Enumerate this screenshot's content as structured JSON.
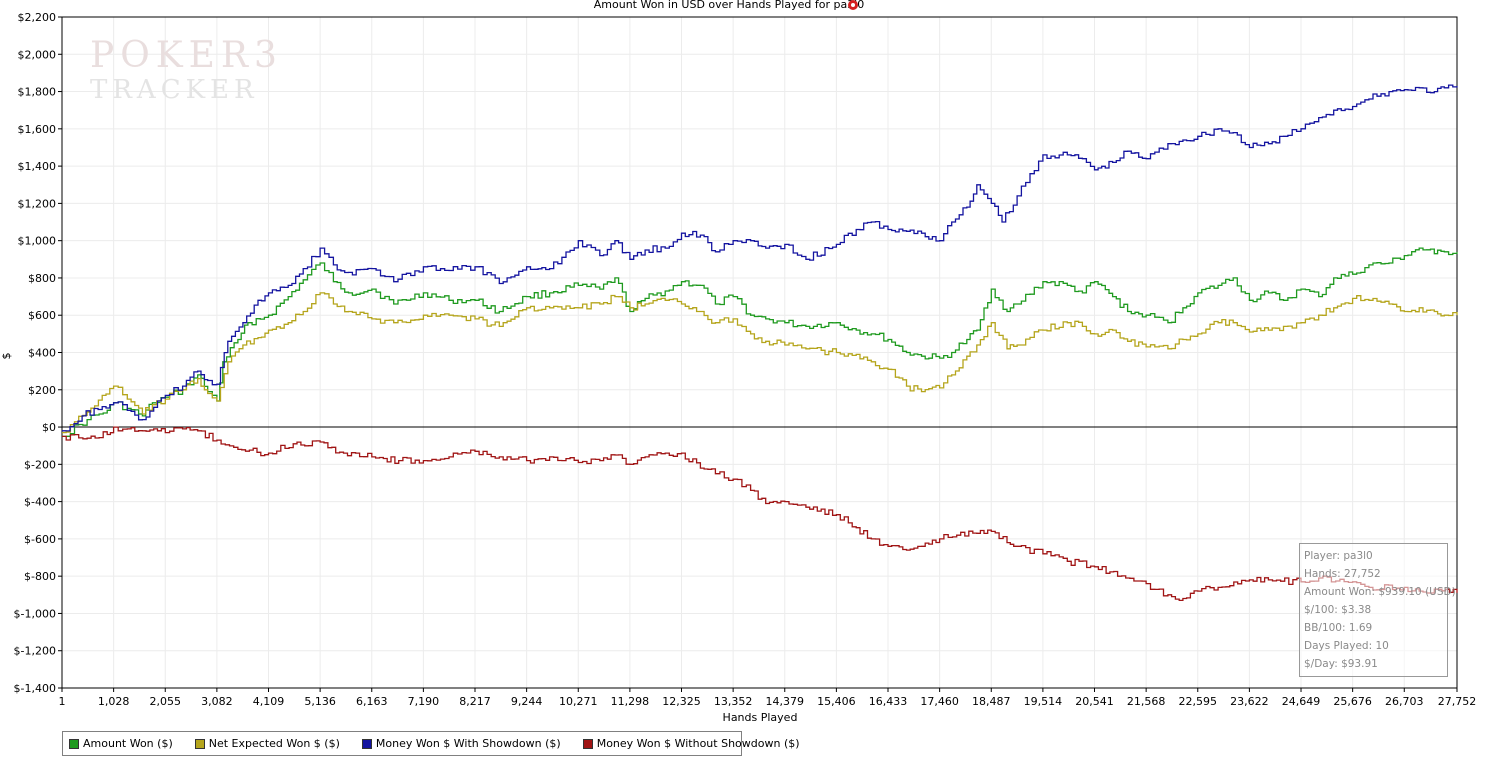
{
  "chart_data": {
    "type": "line",
    "title": "Amount Won in USD over Hands Played for pa3l0",
    "xlabel": "Hands Played",
    "ylabel": "$",
    "xlim": [
      1,
      27752
    ],
    "ylim": [
      -1400,
      2200
    ],
    "x_ticks": [
      "1",
      "1,028",
      "2,055",
      "3,082",
      "4,109",
      "5,136",
      "6,163",
      "7,190",
      "8,217",
      "9,244",
      "10,271",
      "11,298",
      "12,325",
      "13,352",
      "14,379",
      "15,406",
      "16,433",
      "17,460",
      "18,487",
      "19,514",
      "20,541",
      "21,568",
      "22,595",
      "23,622",
      "24,649",
      "25,676",
      "26,703",
      "27,752"
    ],
    "y_ticks": [
      "$2,200",
      "$2,000",
      "$1,800",
      "$1,600",
      "$1,400",
      "$1,200",
      "$1,000",
      "$800",
      "$600",
      "$400",
      "$200",
      "$0",
      "$-200",
      "$-400",
      "$-600",
      "$-800",
      "$-1,000",
      "$-1,200",
      "$-1,400"
    ],
    "y_tick_values": [
      2200,
      2000,
      1800,
      1600,
      1400,
      1200,
      1000,
      800,
      600,
      400,
      200,
      0,
      -200,
      -400,
      -600,
      -800,
      -1000,
      -1200,
      -1400
    ],
    "grid": true,
    "legend_position": "bottom-left",
    "series": [
      {
        "name": "Amount Won ($)",
        "color": "#1f9a1f",
        "x": [
          1,
          500,
          900,
          1028,
          1300,
          1600,
          1800,
          2055,
          2400,
          2700,
          2900,
          3082,
          3200,
          3500,
          3700,
          4109,
          4500,
          4800,
          5136,
          5400,
          5700,
          6163,
          6600,
          7190,
          7700,
          8217,
          8700,
          9244,
          9700,
          10271,
          10700,
          11000,
          11298,
          11600,
          12000,
          12325,
          12700,
          13000,
          13352,
          13700,
          14000,
          14379,
          14800,
          15406,
          15800,
          16100,
          16433,
          16800,
          17100,
          17460,
          17700,
          18000,
          18200,
          18487,
          18800,
          19000,
          19514,
          20000,
          20300,
          20541,
          20900,
          21200,
          21568,
          22000,
          22300,
          22595,
          23000,
          23300,
          23622,
          24000,
          24300,
          24649,
          25000,
          25300,
          25676,
          26000,
          26400,
          26703,
          27000,
          27300,
          27500,
          27752
        ],
        "y": [
          -50,
          40,
          90,
          130,
          100,
          60,
          130,
          160,
          200,
          280,
          190,
          140,
          350,
          470,
          560,
          600,
          700,
          790,
          880,
          780,
          720,
          740,
          660,
          720,
          680,
          680,
          620,
          700,
          720,
          760,
          740,
          800,
          620,
          690,
          730,
          780,
          760,
          660,
          700,
          600,
          580,
          560,
          540,
          560,
          520,
          500,
          470,
          400,
          380,
          370,
          400,
          470,
          520,
          740,
          620,
          660,
          780,
          760,
          720,
          780,
          700,
          620,
          600,
          560,
          640,
          720,
          760,
          800,
          680,
          720,
          680,
          740,
          700,
          800,
          820,
          870,
          880,
          920,
          960,
          930,
          940,
          939
        ]
      },
      {
        "name": "Net Expected Won $ ($)",
        "color": "#b5a51c",
        "x": [
          1,
          500,
          800,
          1028,
          1300,
          1600,
          1800,
          2055,
          2400,
          2700,
          2900,
          3082,
          3300,
          3600,
          3900,
          4109,
          4500,
          4800,
          5136,
          5400,
          5700,
          6163,
          6600,
          7190,
          7700,
          8217,
          8700,
          9244,
          9700,
          10271,
          10700,
          11000,
          11298,
          11600,
          12000,
          12325,
          12700,
          13000,
          13352,
          13700,
          14000,
          14379,
          14800,
          15406,
          15800,
          16100,
          16433,
          16800,
          17100,
          17460,
          17700,
          18000,
          18200,
          18487,
          18800,
          19000,
          19514,
          20000,
          20300,
          20541,
          20900,
          21200,
          21568,
          22000,
          22300,
          22595,
          23000,
          23300,
          23622,
          24000,
          24300,
          24649,
          25000,
          25300,
          25676,
          26000,
          26400,
          26703,
          27000,
          27300,
          27500,
          27752
        ],
        "y": [
          -30,
          80,
          170,
          220,
          150,
          70,
          120,
          150,
          200,
          260,
          180,
          140,
          350,
          440,
          480,
          520,
          560,
          620,
          720,
          660,
          620,
          580,
          560,
          600,
          600,
          580,
          540,
          640,
          640,
          640,
          660,
          700,
          640,
          660,
          680,
          660,
          620,
          560,
          580,
          500,
          460,
          440,
          420,
          400,
          390,
          350,
          310,
          220,
          190,
          210,
          280,
          380,
          440,
          560,
          420,
          440,
          520,
          560,
          540,
          500,
          520,
          460,
          430,
          420,
          470,
          500,
          560,
          560,
          510,
          520,
          540,
          560,
          600,
          640,
          690,
          680,
          660,
          620,
          640,
          620,
          600,
          600
        ]
      },
      {
        "name": "Money Won $ With Showdown ($)",
        "color": "#1414a0",
        "x": [
          1,
          400,
          800,
          1028,
          1300,
          1600,
          1900,
          2055,
          2400,
          2700,
          2900,
          3082,
          3300,
          3600,
          3900,
          4109,
          4500,
          4800,
          5136,
          5400,
          5700,
          6163,
          6600,
          7190,
          7700,
          8217,
          8700,
          9244,
          9700,
          10271,
          10700,
          11000,
          11298,
          11600,
          12000,
          12325,
          12700,
          13000,
          13352,
          13700,
          14000,
          14379,
          14800,
          15406,
          15800,
          16100,
          16433,
          16800,
          17100,
          17460,
          17700,
          18000,
          18200,
          18487,
          18700,
          19000,
          19514,
          20000,
          20300,
          20541,
          20900,
          21200,
          21568,
          22000,
          22300,
          22595,
          23000,
          23300,
          23622,
          24000,
          24300,
          24649,
          25000,
          25300,
          25676,
          26000,
          26400,
          26703,
          27000,
          27300,
          27500,
          27752
        ],
        "y": [
          -20,
          60,
          110,
          130,
          90,
          40,
          140,
          170,
          220,
          300,
          250,
          230,
          460,
          560,
          680,
          720,
          760,
          850,
          960,
          870,
          830,
          850,
          780,
          860,
          840,
          860,
          770,
          860,
          850,
          1000,
          920,
          1000,
          900,
          950,
          960,
          1040,
          1030,
          940,
          1000,
          1000,
          960,
          980,
          900,
          980,
          1060,
          1100,
          1060,
          1050,
          1040,
          1000,
          1100,
          1180,
          1300,
          1200,
          1100,
          1240,
          1460,
          1460,
          1440,
          1380,
          1420,
          1480,
          1440,
          1520,
          1540,
          1560,
          1600,
          1580,
          1500,
          1520,
          1560,
          1600,
          1660,
          1700,
          1720,
          1760,
          1800,
          1810,
          1820,
          1800,
          1820,
          1830
        ]
      },
      {
        "name": "Money Won $ Without Showdown ($)",
        "color": "#a01414",
        "x": [
          1,
          500,
          900,
          1028,
          1300,
          1600,
          1900,
          2055,
          2400,
          2700,
          3082,
          3500,
          4109,
          4600,
          5136,
          5600,
          6163,
          6700,
          7190,
          7700,
          8217,
          8700,
          9244,
          9700,
          10271,
          10700,
          11000,
          11298,
          11600,
          12000,
          12325,
          12700,
          13000,
          13352,
          13700,
          14000,
          14379,
          14800,
          15406,
          15800,
          16100,
          16433,
          16800,
          17100,
          17460,
          17800,
          18200,
          18487,
          18800,
          19000,
          19514,
          20000,
          20541,
          21000,
          21568,
          22000,
          22300,
          22595,
          23000,
          23622,
          24000,
          24649,
          25000,
          25676,
          26000,
          26703,
          27000,
          27300,
          27752
        ],
        "y": [
          -50,
          -60,
          -40,
          0,
          -10,
          -20,
          -20,
          -30,
          -10,
          -20,
          -70,
          -120,
          -140,
          -90,
          -80,
          -140,
          -160,
          -180,
          -180,
          -160,
          -130,
          -160,
          -180,
          -160,
          -190,
          -180,
          -150,
          -200,
          -160,
          -140,
          -140,
          -220,
          -250,
          -280,
          -340,
          -410,
          -400,
          -430,
          -470,
          -540,
          -600,
          -640,
          -660,
          -640,
          -600,
          -580,
          -570,
          -560,
          -620,
          -640,
          -680,
          -720,
          -750,
          -800,
          -840,
          -900,
          -920,
          -880,
          -860,
          -820,
          -820,
          -830,
          -810,
          -830,
          -860,
          -860,
          -880,
          -870,
          -890
        ]
      }
    ]
  },
  "legend": {
    "items": [
      {
        "label": "Amount Won ($)",
        "color": "#1f9a1f"
      },
      {
        "label": "Net Expected Won $ ($)",
        "color": "#b5a51c"
      },
      {
        "label": "Money Won $ With Showdown ($)",
        "color": "#1414a0"
      },
      {
        "label": "Money Won $ Without Showdown ($)",
        "color": "#a01414"
      }
    ]
  },
  "stats": {
    "player": "Player: pa3l0",
    "hands": "Hands: 27,752",
    "amount_won": "Amount Won: $939.10 (USD)",
    "per100": "$/100: $3.38",
    "bb100": "BB/100: 1.69",
    "days_played": "Days Played: 10",
    "per_day": "$/Day: $93.91"
  },
  "watermark": {
    "line1": "POKER3",
    "line2": "TRACKER"
  },
  "icons": {
    "title_icon": "poker-chip-icon"
  }
}
